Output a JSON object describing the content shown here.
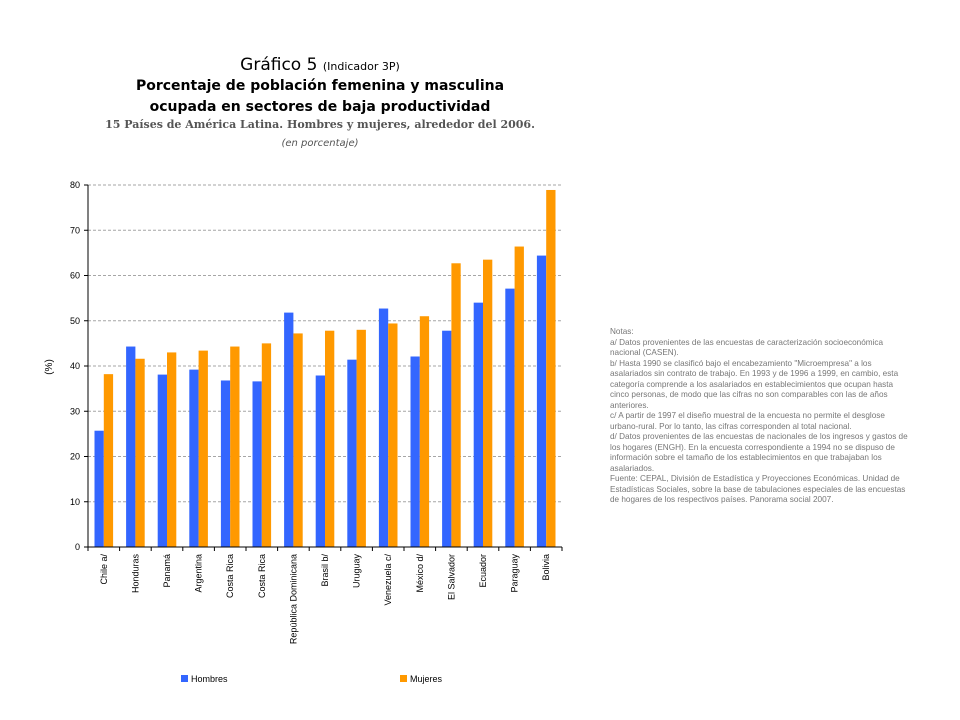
{
  "title": {
    "main": "Gráfico 5",
    "indicator": "(Indicador 3P)",
    "line1": "Porcentaje de población femenina y masculina",
    "line2": "ocupada en sectores de baja productividad",
    "subtitle": "15 Países de América Latina. Hombres y mujeres, alrededor del 2006.",
    "unit_note": "(en porcentaje)"
  },
  "notes": [
    "Notas:",
    "a/ Datos provenientes de las encuestas de caracterización socioeconómica nacional (CASEN).",
    "b/ Hasta 1990 se clasificó bajo el encabezamiento \"Microempresa\" a los asalariados sin contrato de trabajo. En 1993 y de 1996 a 1999, en cambio, esta categoría comprende a los asalariados en establecimientos que ocupan hasta cinco personas, de modo que las cifras no son comparables con las de años anteriores.",
    "c/ A partir de 1997 el diseño muestral de la encuesta no permite el desglose urbano-rural. Por lo tanto, las cifras corresponden al total nacional.",
    "d/ Datos provenientes de las encuestas de nacionales de los ingresos y gastos de los hogares (ENGH). En la encuesta correspondiente a 1994 no se dispuso de información sobre el tamaño de los establecimientos en que trabajaban los asalariados.",
    "Fuente: CEPAL, División de Estadística y Proyecciones Económicas. Unidad de Estadísticas Sociales, sobre la base de tabulaciones especiales de las encuestas de hogares de los respectivos países. Panorama social 2007."
  ],
  "chart_data": {
    "type": "bar",
    "ylabel": "(%)",
    "ylim": [
      0,
      80
    ],
    "yticks": [
      0,
      10,
      20,
      30,
      40,
      50,
      60,
      70,
      80
    ],
    "grid": true,
    "legend_position": "bottom",
    "categories": [
      "Chile a/",
      "Honduras",
      "Panamá",
      "Argentina",
      "Costa Rica",
      "Costa Rica",
      "República Dominicana",
      "Brasil b/",
      "Uruguay",
      "Venezuela c/",
      "México d/",
      "El Salvador",
      "Ecuador",
      "Paraguay",
      "Bolivia"
    ],
    "series": [
      {
        "name": "Hombres",
        "color": "#3366ff",
        "values": [
          25.7,
          44.3,
          38.1,
          39.2,
          36.8,
          36.6,
          51.8,
          37.9,
          41.4,
          52.7,
          42.1,
          47.8,
          54.0,
          57.1,
          64.4
        ]
      },
      {
        "name": "Mujeres",
        "color": "#ff9900",
        "values": [
          38.2,
          41.6,
          43.0,
          43.4,
          44.3,
          45.0,
          47.2,
          47.8,
          48.0,
          49.4,
          51.0,
          62.7,
          63.5,
          66.4,
          78.9
        ]
      }
    ]
  }
}
